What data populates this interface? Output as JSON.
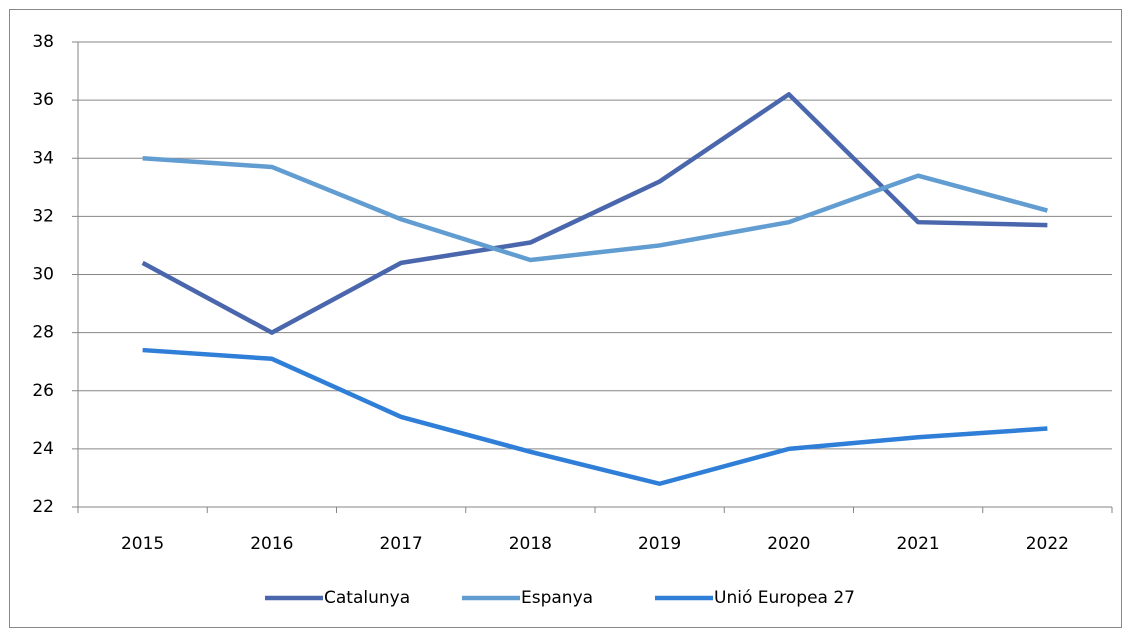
{
  "chart_data": {
    "type": "line",
    "categories": [
      "2015",
      "2016",
      "2017",
      "2018",
      "2019",
      "2020",
      "2021",
      "2022"
    ],
    "series": [
      {
        "name": "Catalunya",
        "color": "#4a66ac",
        "values": [
          30.4,
          28.0,
          30.4,
          31.1,
          33.2,
          36.2,
          31.8,
          31.7
        ]
      },
      {
        "name": "Espanya",
        "color": "#629dd1",
        "values": [
          34.0,
          33.7,
          31.9,
          30.5,
          31.0,
          31.8,
          33.4,
          32.2
        ]
      },
      {
        "name": "Unió Europea 27",
        "color": "#2f7ed8",
        "values": [
          27.4,
          27.1,
          25.1,
          23.9,
          22.8,
          24.0,
          24.4,
          24.7
        ]
      }
    ],
    "ylim": [
      22,
      38
    ],
    "yticks": [
      22,
      24,
      26,
      28,
      30,
      32,
      34,
      36,
      38
    ],
    "grid": true,
    "legend": "bottom"
  }
}
